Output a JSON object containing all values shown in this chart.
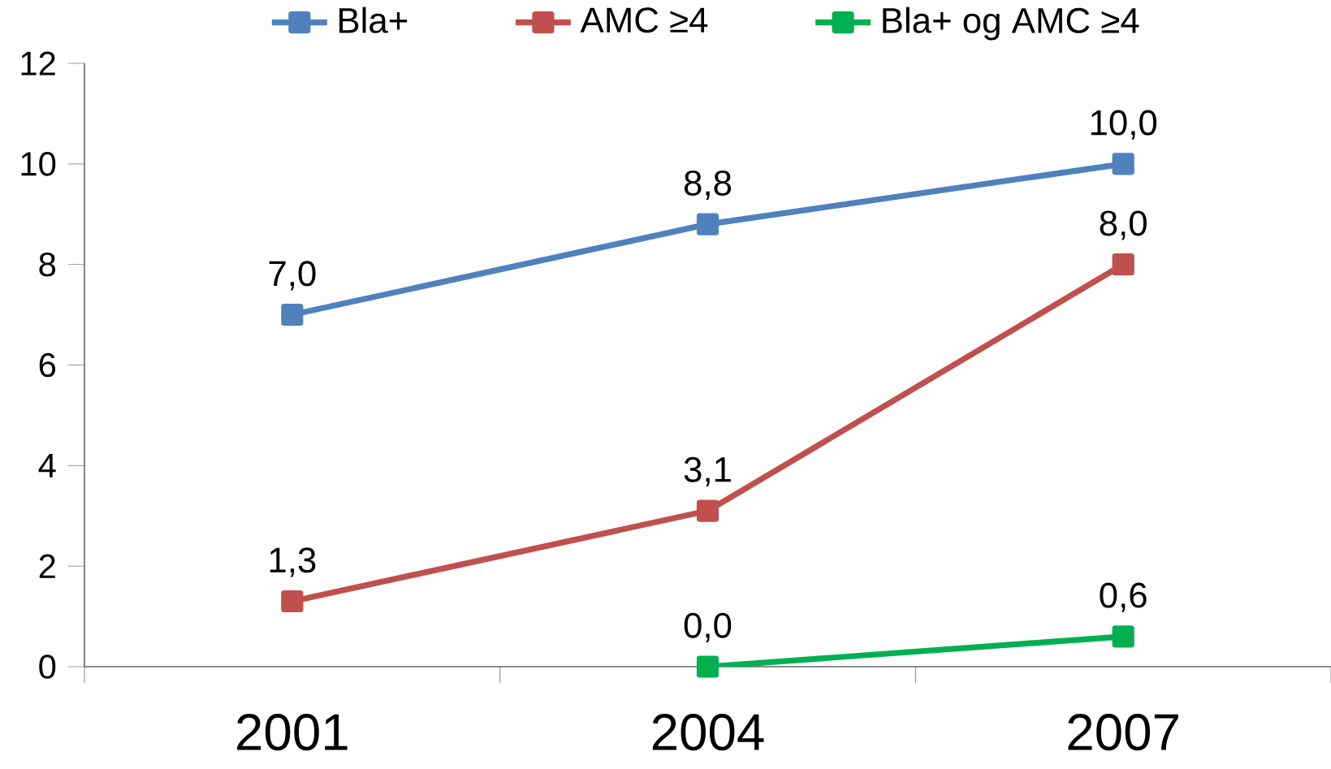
{
  "chart_data": {
    "type": "line",
    "categories": [
      "2001",
      "2004",
      "2007"
    ],
    "series": [
      {
        "name": "Bla+",
        "color": "#4f81bd",
        "values": [
          7.0,
          8.8,
          10.0
        ],
        "value_labels": [
          "7,0",
          "8,8",
          "10,0"
        ]
      },
      {
        "name": "AMC ≥4",
        "color": "#c0504d",
        "values": [
          1.3,
          3.1,
          8.0
        ],
        "value_labels": [
          "1,3",
          "3,1",
          "8,0"
        ]
      },
      {
        "name": "Bla+ og AMC ≥4",
        "color": "#00b050",
        "values": [
          null,
          0.0,
          0.6
        ],
        "value_labels": [
          null,
          "0,0",
          "0,6"
        ]
      }
    ],
    "ylim": [
      0,
      12
    ],
    "yticks": [
      0,
      2,
      4,
      6,
      8,
      10,
      12
    ],
    "grid": false,
    "legend": "top",
    "marker": "square",
    "line_style": "solid"
  }
}
